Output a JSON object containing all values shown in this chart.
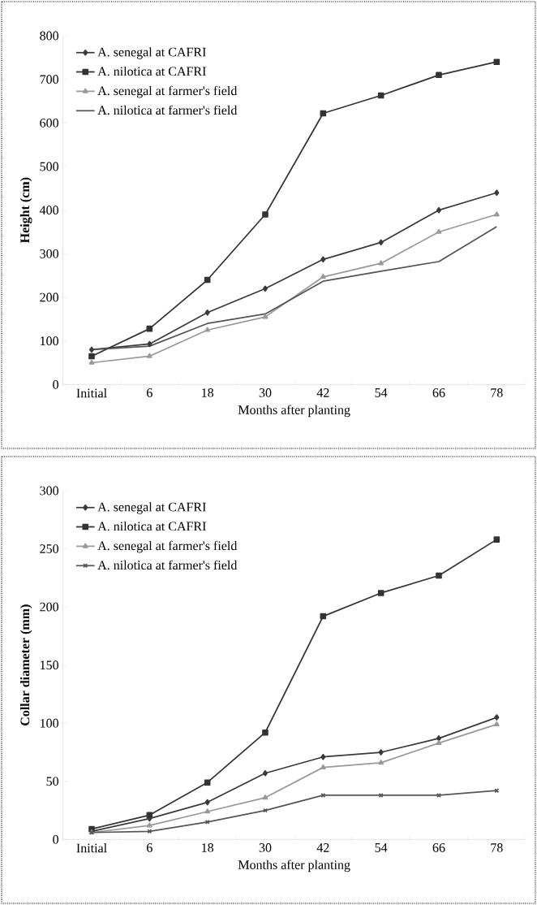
{
  "chart_data": [
    {
      "type": "line",
      "ylabel": "Height (cm)",
      "xlabel": "Months after planting",
      "categories": [
        "Initial",
        "6",
        "18",
        "30",
        "42",
        "54",
        "66",
        "78"
      ],
      "ylim": [
        0,
        800
      ],
      "yticks": [
        0,
        100,
        200,
        300,
        400,
        500,
        600,
        700,
        800
      ],
      "legend": "top left",
      "series": [
        {
          "name": "A. senegal at CAFRI",
          "color": "#3a3a3a",
          "marker": "diamond",
          "values": [
            80,
            93,
            165,
            220,
            287,
            326,
            400,
            440
          ]
        },
        {
          "name": "A. nilotica at CAFRI",
          "color": "#333333",
          "marker": "square",
          "values": [
            65,
            128,
            240,
            390,
            622,
            663,
            710,
            740
          ]
        },
        {
          "name": "A. senegal at farmer's field",
          "color": "#999999",
          "marker": "triangle",
          "values": [
            50,
            65,
            125,
            155,
            247,
            278,
            350,
            390
          ]
        },
        {
          "name": "A. nilotica at farmer's field",
          "color": "#555555",
          "marker": "none",
          "values": [
            80,
            88,
            140,
            162,
            237,
            260,
            282,
            362
          ]
        }
      ]
    },
    {
      "type": "line",
      "ylabel": "Collar diameter (mm)",
      "xlabel": "Months after planting",
      "categories": [
        "Initial",
        "6",
        "18",
        "30",
        "42",
        "54",
        "66",
        "78"
      ],
      "ylim": [
        0,
        300
      ],
      "yticks": [
        0,
        50,
        100,
        150,
        200,
        250,
        300
      ],
      "legend": "top left",
      "series": [
        {
          "name": "A. senegal at CAFRI",
          "color": "#3a3a3a",
          "marker": "diamond",
          "values": [
            7,
            18,
            32,
            57,
            71,
            75,
            87,
            105
          ]
        },
        {
          "name": "A. nilotica at CAFRI",
          "color": "#333333",
          "marker": "square",
          "values": [
            9,
            21,
            49,
            92,
            192,
            212,
            227,
            258
          ]
        },
        {
          "name": "A. senegal at farmer's field",
          "color": "#999999",
          "marker": "triangle",
          "values": [
            6,
            12,
            24,
            36,
            62,
            66,
            83,
            99
          ]
        },
        {
          "name": "A. nilotica at farmer's field",
          "color": "#555555",
          "marker": "cross",
          "values": [
            6,
            7,
            15,
            25,
            38,
            38,
            38,
            42
          ]
        }
      ]
    }
  ]
}
